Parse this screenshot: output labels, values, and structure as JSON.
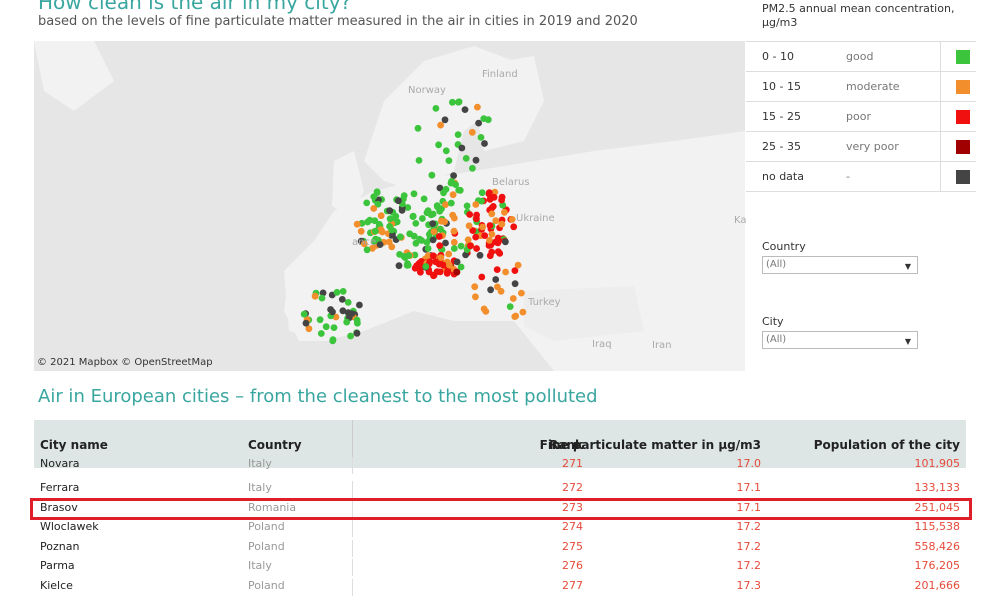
{
  "header": {
    "title": "How clean is the air in my city?",
    "subtitle": "based on the levels of fine particulate matter measured in the air in cities in 2019 and 2020"
  },
  "map": {
    "credit": "© 2021 Mapbox © OpenStreetMap",
    "labels": [
      "Finland",
      "Norway",
      "Belarus",
      "Ukraine",
      "Turkey",
      "Iraq",
      "Iran",
      "Ka",
      "ance"
    ]
  },
  "legend": {
    "title": "PM2.5 annual mean concentration, μg/m3",
    "items": [
      {
        "range": "0 - 10",
        "label": "good",
        "color": "#3cc43c"
      },
      {
        "range": "10 - 15",
        "label": "moderate",
        "color": "#f28e2b"
      },
      {
        "range": "15 - 25",
        "label": "poor",
        "color": "#f01010"
      },
      {
        "range": "25 - 35",
        "label": "very poor",
        "color": "#a00000"
      },
      {
        "range": "no data",
        "label": "-",
        "color": "#444444"
      }
    ]
  },
  "filters": {
    "country": {
      "label": "Country",
      "value": "(All)"
    },
    "city": {
      "label": "City",
      "value": "(All)"
    }
  },
  "table": {
    "section_title": "Air in European cities – from the cleanest to the most polluted",
    "columns": {
      "city": "City name",
      "country": "Country",
      "rank": "Rank",
      "pm": "Fine particulate matter in μg/m3",
      "population": "Population of the city"
    },
    "rows": [
      {
        "city": "Novara",
        "country": "Italy",
        "rank": "271",
        "pm": "17.0",
        "population": "101,905"
      },
      {
        "city": "Ferrara",
        "country": "Italy",
        "rank": "272",
        "pm": "17.1",
        "population": "133,133"
      },
      {
        "city": "Brasov",
        "country": "Romania",
        "rank": "273",
        "pm": "17.1",
        "population": "251,045"
      },
      {
        "city": "Wloclawek",
        "country": "Poland",
        "rank": "274",
        "pm": "17.2",
        "population": "115,538"
      },
      {
        "city": "Poznan",
        "country": "Poland",
        "rank": "275",
        "pm": "17.2",
        "population": "558,426"
      },
      {
        "city": "Parma",
        "country": "Italy",
        "rank": "276",
        "pm": "17.2",
        "population": "176,205"
      },
      {
        "city": "Kielce",
        "country": "Poland",
        "rank": "277",
        "pm": "17.3",
        "population": "201,666"
      }
    ]
  }
}
